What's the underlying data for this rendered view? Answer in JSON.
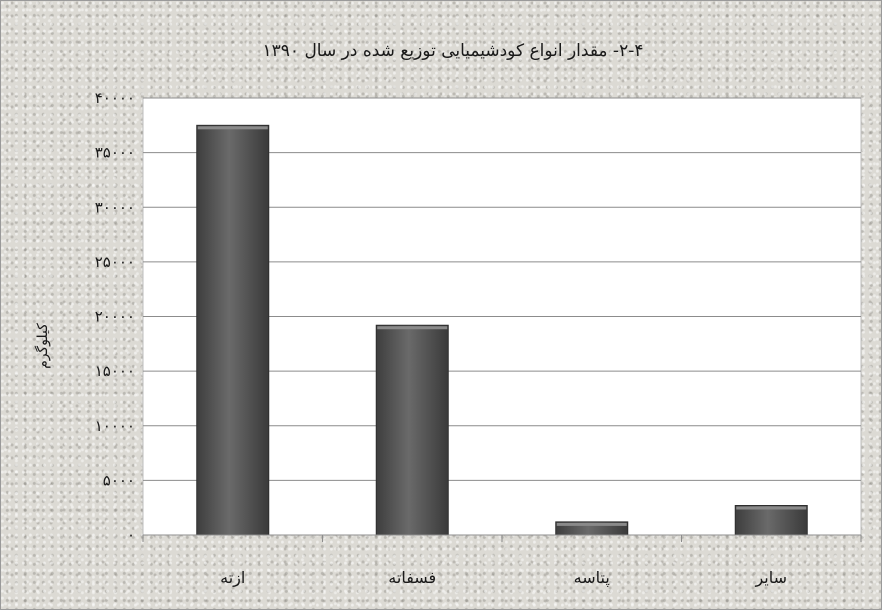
{
  "chart_data": {
    "type": "bar",
    "title": "۲-۴- مقدار انواع کودشیمیایی توزیع شده در سال ۱۳۹۰",
    "ylabel": "کیلوگرم",
    "xlabel": "",
    "categories": [
      "ازته",
      "فسفاته",
      "پتاسه",
      "سایر"
    ],
    "values": [
      37500,
      19200,
      1200,
      2700
    ],
    "ylim": [
      0,
      40000
    ],
    "yticks": [
      0,
      5000,
      10000,
      15000,
      20000,
      25000,
      30000,
      35000,
      40000
    ],
    "ytick_labels": [
      "۰",
      "۵۰۰۰",
      "۱۰۰۰۰",
      "۱۵۰۰۰",
      "۲۰۰۰۰",
      "۲۵۰۰۰",
      "۳۰۰۰۰",
      "۳۵۰۰۰",
      "۴۰۰۰۰"
    ],
    "grid": true,
    "legend": "none",
    "bar_color": "#555555",
    "plot_background": "#ffffff"
  }
}
